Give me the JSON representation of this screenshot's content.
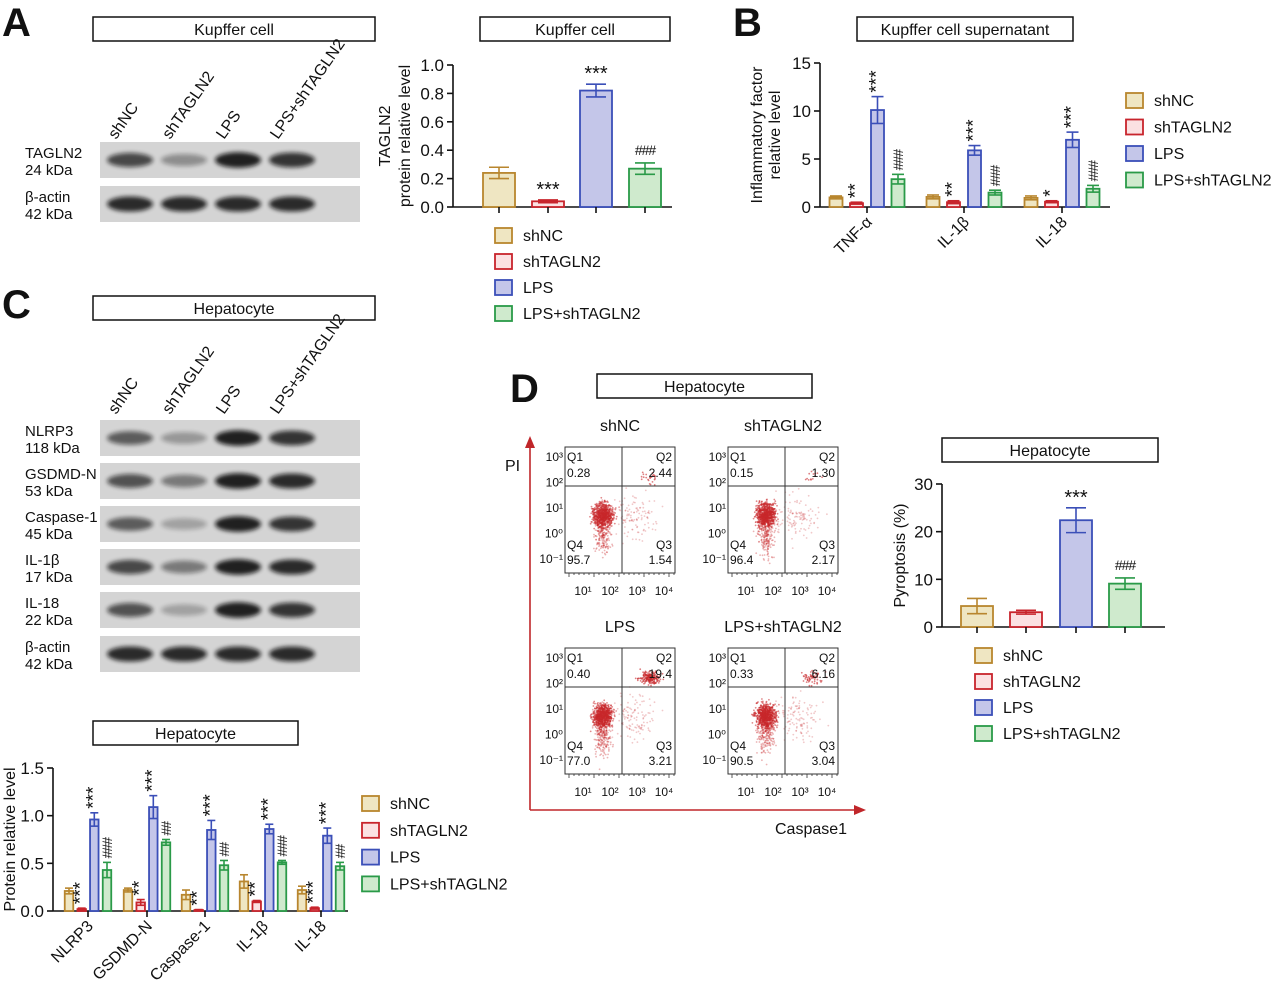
{
  "panels": {
    "A": "A",
    "B": "B",
    "C": "C",
    "D": "D"
  },
  "groups": [
    "shNC",
    "shTAGLN2",
    "LPS",
    "LPS+shTAGLN2"
  ],
  "colors": {
    "stroke": [
      "#b8862e",
      "#c8242c",
      "#3b4fb8",
      "#2a9a48"
    ],
    "fill": [
      "#efe6c2",
      "#fbe1e2",
      "#c4c6e9",
      "#cfeacd"
    ],
    "flow_axis": "#c0262a",
    "dots": "#c8282c"
  },
  "blot_A": {
    "title": "Kupffer cell",
    "lanes": [
      "shNC",
      "shTAGLN2",
      "LPS",
      "LPS+shTAGLN2"
    ],
    "rows": [
      {
        "protein": "TAGLN2",
        "size": "24 kDa",
        "band_intensity": [
          0.7,
          0.35,
          0.9,
          0.8
        ]
      },
      {
        "protein": "β-actin",
        "size": "42 kDa",
        "band_intensity": [
          0.85,
          0.85,
          0.85,
          0.85
        ]
      }
    ]
  },
  "blot_C": {
    "title": "Hepatocyte",
    "lanes": [
      "shNC",
      "shTAGLN2",
      "LPS",
      "LPS+shTAGLN2"
    ],
    "rows": [
      {
        "protein": "NLRP3",
        "size": "118 kDa",
        "band_intensity": [
          0.6,
          0.3,
          0.9,
          0.8
        ]
      },
      {
        "protein": "GSDMD-N",
        "size": "53 kDa",
        "band_intensity": [
          0.65,
          0.45,
          0.9,
          0.85
        ]
      },
      {
        "protein": "Caspase-1",
        "size": "45 kDa",
        "band_intensity": [
          0.6,
          0.25,
          0.9,
          0.8
        ]
      },
      {
        "protein": "IL-1β",
        "size": "17 kDa",
        "band_intensity": [
          0.7,
          0.45,
          0.9,
          0.85
        ]
      },
      {
        "protein": "IL-18",
        "size": "22 kDa",
        "band_intensity": [
          0.65,
          0.25,
          0.9,
          0.8
        ]
      },
      {
        "protein": "β-actin",
        "size": "42 kDa",
        "band_intensity": [
          0.85,
          0.85,
          0.85,
          0.85
        ]
      }
    ]
  },
  "flow_D": {
    "title": "Hepatocyte",
    "y_axis_label": "PI",
    "x_axis_label": "Caspase1",
    "y_ticks": [
      "10³",
      "10²",
      "10¹",
      "10⁰",
      "10⁻¹"
    ],
    "x_ticks": [
      "10¹",
      "10²",
      "10³",
      "10⁴"
    ],
    "plots": [
      {
        "name": "shNC",
        "Q1": "0.28",
        "Q2": "2.44",
        "Q3": "1.54",
        "Q4": "95.7"
      },
      {
        "name": "shTAGLN2",
        "Q1": "0.15",
        "Q2": "1.30",
        "Q3": "2.17",
        "Q4": "96.4"
      },
      {
        "name": "LPS",
        "Q1": "0.40",
        "Q2": "19.4",
        "Q3": "3.21",
        "Q4": "77.0"
      },
      {
        "name": "LPS+shTAGLN2",
        "Q1": "0.33",
        "Q2": "6.16",
        "Q3": "3.04",
        "Q4": "90.5"
      }
    ],
    "quadrant_labels": [
      "Q1",
      "Q2",
      "Q3",
      "Q4"
    ]
  },
  "chart_data": [
    {
      "id": "A",
      "type": "bar",
      "title": "Kupffer cell",
      "ylabel": [
        "TAGLN2",
        "protein relative level"
      ],
      "ylim": [
        0,
        1.0
      ],
      "yticks": [
        0,
        0.2,
        0.4,
        0.6,
        0.8,
        1.0
      ],
      "ytick_labels": [
        "0.0",
        "0.2",
        "0.4",
        "0.6",
        "0.8",
        "1.0"
      ],
      "categories": [
        ""
      ],
      "series": [
        {
          "name": "shNC",
          "values": [
            0.24
          ],
          "errors": [
            0.04
          ],
          "sig": [
            ""
          ]
        },
        {
          "name": "shTAGLN2",
          "values": [
            0.04
          ],
          "errors": [
            0.01
          ],
          "sig": [
            "***"
          ]
        },
        {
          "name": "LPS",
          "values": [
            0.82
          ],
          "errors": [
            0.045
          ],
          "sig": [
            "***"
          ]
        },
        {
          "name": "LPS+shTAGLN2",
          "values": [
            0.27
          ],
          "errors": [
            0.04
          ],
          "sig": [
            "###"
          ]
        }
      ],
      "legend": "bottom"
    },
    {
      "id": "B",
      "type": "bar",
      "title": "Kupffer cell supernatant",
      "ylabel": [
        "Inflammatory factor",
        "relative level"
      ],
      "ylim": [
        0,
        15
      ],
      "yticks": [
        0,
        5,
        10,
        15
      ],
      "ytick_labels": [
        "0",
        "5",
        "10",
        "15"
      ],
      "categories": [
        "TNF-α",
        "IL-1β",
        "IL-18"
      ],
      "series": [
        {
          "name": "shNC",
          "values": [
            1.0,
            1.05,
            0.95
          ],
          "errors": [
            0.15,
            0.2,
            0.2
          ],
          "sig": [
            "",
            "",
            ""
          ]
        },
        {
          "name": "shTAGLN2",
          "values": [
            0.4,
            0.5,
            0.55
          ],
          "errors": [
            0.1,
            0.15,
            0.1
          ],
          "sig": [
            "**",
            "**",
            "*"
          ]
        },
        {
          "name": "LPS",
          "values": [
            10.1,
            5.9,
            7.0
          ],
          "errors": [
            1.4,
            0.5,
            0.8
          ],
          "sig": [
            "***",
            "***",
            "***"
          ]
        },
        {
          "name": "LPS+shTAGLN2",
          "values": [
            2.9,
            1.5,
            1.9
          ],
          "errors": [
            0.5,
            0.25,
            0.35
          ],
          "sig": [
            "###",
            "###",
            "###"
          ]
        }
      ],
      "legend": "right"
    },
    {
      "id": "C",
      "type": "bar",
      "title": "Hepatocyte",
      "ylabel": [
        "Protein relative level"
      ],
      "ylim": [
        0,
        1.5
      ],
      "yticks": [
        0,
        0.5,
        1.0,
        1.5
      ],
      "ytick_labels": [
        "0.0",
        "0.5",
        "1.0",
        "1.5"
      ],
      "categories": [
        "NLRP3",
        "GSDMD-N",
        "Caspase-1",
        "IL-1β",
        "IL-18"
      ],
      "series": [
        {
          "name": "shNC",
          "values": [
            0.21,
            0.22,
            0.17,
            0.31,
            0.22
          ],
          "errors": [
            0.03,
            0.02,
            0.05,
            0.07,
            0.04
          ],
          "sig": [
            "",
            "",
            "",
            "",
            ""
          ]
        },
        {
          "name": "shTAGLN2",
          "values": [
            0.02,
            0.09,
            0.01,
            0.1,
            0.03
          ],
          "errors": [
            0.01,
            0.03,
            0.005,
            0.01,
            0.01
          ],
          "sig": [
            "***",
            "**",
            "**",
            "**",
            "***"
          ]
        },
        {
          "name": "LPS",
          "values": [
            0.96,
            1.09,
            0.85,
            0.86,
            0.79
          ],
          "errors": [
            0.07,
            0.12,
            0.1,
            0.05,
            0.08
          ],
          "sig": [
            "***",
            "***",
            "***",
            "***",
            "***"
          ]
        },
        {
          "name": "LPS+shTAGLN2",
          "values": [
            0.43,
            0.72,
            0.48,
            0.51,
            0.47
          ],
          "errors": [
            0.08,
            0.03,
            0.05,
            0.02,
            0.04
          ],
          "sig": [
            "###",
            "##",
            "##",
            "###",
            "##"
          ]
        }
      ],
      "legend": "right"
    },
    {
      "id": "D",
      "type": "bar",
      "title": "Hepatocyte",
      "ylabel": [
        "Pyroptosis (%)"
      ],
      "ylim": [
        0,
        30
      ],
      "yticks": [
        0,
        10,
        20,
        30
      ],
      "ytick_labels": [
        "0",
        "10",
        "20",
        "30"
      ],
      "categories": [
        ""
      ],
      "series": [
        {
          "name": "shNC",
          "values": [
            4.4
          ],
          "errors": [
            1.6
          ],
          "sig": [
            ""
          ]
        },
        {
          "name": "shTAGLN2",
          "values": [
            3.1
          ],
          "errors": [
            0.4
          ],
          "sig": [
            ""
          ]
        },
        {
          "name": "LPS",
          "values": [
            22.4
          ],
          "errors": [
            2.6
          ],
          "sig": [
            "***"
          ]
        },
        {
          "name": "LPS+shTAGLN2",
          "values": [
            9.1
          ],
          "errors": [
            1.2
          ],
          "sig": [
            "###"
          ]
        }
      ],
      "legend": "bottom"
    }
  ]
}
